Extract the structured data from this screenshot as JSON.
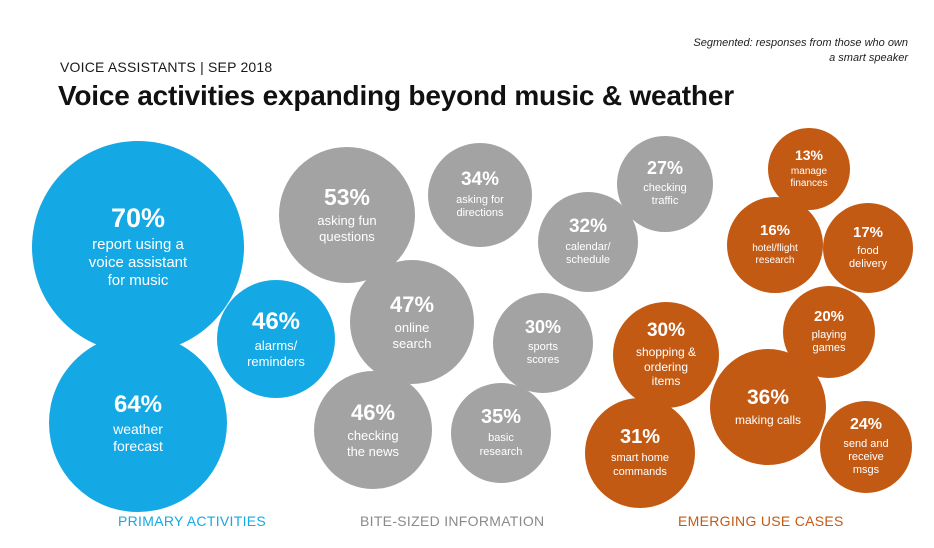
{
  "header": {
    "kicker": "VOICE ASSISTANTS | SEP 2018",
    "title": "Voice activities expanding beyond music & weather",
    "note": "Segmented: responses from those who own a smart speaker"
  },
  "colors": {
    "primary": "#14a9e4",
    "bite_sized": "#9d9d9d",
    "emerging": "#c35a14"
  },
  "chart_data": {
    "type": "bubble",
    "title": "Voice activities expanding beyond music & weather",
    "unit": "%",
    "groups": [
      {
        "id": "primary",
        "label": "PRIMARY ACTIVITIES",
        "color": "#14a9e4"
      },
      {
        "id": "bite_sized",
        "label": "BITE-SIZED INFORMATION",
        "color": "#a3a3a3"
      },
      {
        "id": "emerging",
        "label": "EMERGING USE CASES",
        "color": "#c35a14"
      }
    ],
    "items": [
      {
        "group": "primary",
        "pct": "70%",
        "label": "report using a\nvoice assistant\nfor music",
        "value": 70
      },
      {
        "group": "primary",
        "pct": "64%",
        "label": "weather\nforecast",
        "value": 64
      },
      {
        "group": "primary",
        "pct": "46%",
        "label": "alarms/\nreminders",
        "value": 46
      },
      {
        "group": "bite_sized",
        "pct": "53%",
        "label": "asking fun\nquestions",
        "value": 53
      },
      {
        "group": "bite_sized",
        "pct": "47%",
        "label": "online\nsearch",
        "value": 47
      },
      {
        "group": "bite_sized",
        "pct": "46%",
        "label": "checking\nthe news",
        "value": 46
      },
      {
        "group": "bite_sized",
        "pct": "35%",
        "label": "basic\nresearch",
        "value": 35
      },
      {
        "group": "bite_sized",
        "pct": "34%",
        "label": "asking for\ndirections",
        "value": 34
      },
      {
        "group": "bite_sized",
        "pct": "32%",
        "label": "calendar/\nschedule",
        "value": 32
      },
      {
        "group": "bite_sized",
        "pct": "30%",
        "label": "sports\nscores",
        "value": 30
      },
      {
        "group": "bite_sized",
        "pct": "27%",
        "label": "checking\ntraffic",
        "value": 27
      },
      {
        "group": "emerging",
        "pct": "36%",
        "label": "making calls",
        "value": 36
      },
      {
        "group": "emerging",
        "pct": "31%",
        "label": "smart home\ncommands",
        "value": 31
      },
      {
        "group": "emerging",
        "pct": "30%",
        "label": "shopping &\nordering\nitems",
        "value": 30
      },
      {
        "group": "emerging",
        "pct": "24%",
        "label": "send and\nreceive\nmsgs",
        "value": 24
      },
      {
        "group": "emerging",
        "pct": "20%",
        "label": "playing\ngames",
        "value": 20
      },
      {
        "group": "emerging",
        "pct": "17%",
        "label": "food\ndelivery",
        "value": 17
      },
      {
        "group": "emerging",
        "pct": "16%",
        "label": "hotel/flight\nresearch",
        "value": 16
      },
      {
        "group": "emerging",
        "pct": "13%",
        "label": "manage\nfinances",
        "value": 13
      }
    ]
  }
}
